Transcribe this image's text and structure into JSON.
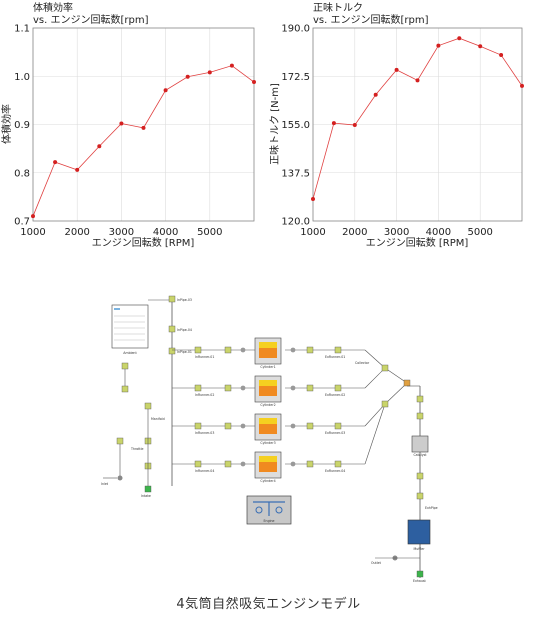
{
  "charts": [
    {
      "id": "vol_eff",
      "title": "体積効率",
      "subtitle": "vs. エンジン回転数[rpm]",
      "xlabel": "エンジン回転数 [RPM]",
      "ylabel": "体積効率",
      "xticks": [
        "1000",
        "2000",
        "3000",
        "4000",
        "5000"
      ],
      "yticks": [
        "0.7",
        "0.8",
        "0.9",
        "1.0",
        "1.1"
      ]
    },
    {
      "id": "torque",
      "title": "正味トルク",
      "subtitle": "vs. エンジン回転数[rpm]",
      "xlabel": "エンジン回転数 [RPM]",
      "ylabel": "正味トルク [N-m]",
      "xticks": [
        "1000",
        "2000",
        "3000",
        "4000",
        "5000"
      ],
      "yticks": [
        "120.0",
        "137.5",
        "155.0",
        "172.5",
        "190.0"
      ]
    }
  ],
  "chart_data": [
    {
      "type": "line",
      "title": "体積効率",
      "subtitle": "vs. エンジン回転数[rpm]",
      "xlabel": "エンジン回転数 [RPM]",
      "ylabel": "体積効率",
      "xlim": [
        1000,
        6000
      ],
      "ylim": [
        0.7,
        1.1
      ],
      "grid": true,
      "series": [
        {
          "color": "#e04040",
          "x": [
            1000,
            1500,
            2000,
            2500,
            3000,
            3500,
            4000,
            4500,
            5000,
            5500,
            6000
          ],
          "y": [
            0.71,
            0.822,
            0.806,
            0.855,
            0.902,
            0.893,
            0.971,
            0.999,
            1.008,
            1.022,
            0.988
          ]
        }
      ]
    },
    {
      "type": "line",
      "title": "正味トルク",
      "subtitle": "vs. エンジン回転数[rpm]",
      "xlabel": "エンジン回転数 [RPM]",
      "ylabel": "正味トルク [N-m]",
      "xlim": [
        1000,
        6000
      ],
      "ylim": [
        120,
        190
      ],
      "grid": true,
      "series": [
        {
          "color": "#e04040",
          "x": [
            1000,
            1500,
            2000,
            2500,
            3000,
            3500,
            4000,
            4500,
            5000,
            5500,
            6000
          ],
          "y": [
            128,
            155.5,
            154.8,
            165.8,
            174.8,
            171.0,
            183.6,
            186.3,
            183.4,
            180.2,
            169.0
          ]
        }
      ]
    }
  ],
  "diagram": {
    "labels": {
      "inpipe03": "InPipe-03",
      "inpipe04": "InPipe-04",
      "inpipe01": "InPipe-01",
      "ambient": "Ambient",
      "intake": "Intake",
      "exhaust": "Exhaust",
      "inlet": "Inlet",
      "outlet": "Outlet",
      "engine": "Engine",
      "cylinder1": "Cylinder1",
      "cylinder2": "Cylinder2",
      "cylinder3": "Cylinder3",
      "cylinder4": "Cylinder4",
      "collector": "Collector",
      "catalyst": "Catalyst",
      "muffler": "Muffler",
      "exrunner1": "ExRunner-01",
      "exrunner2": "ExRunner-02",
      "exrunner3": "ExRunner-03",
      "exrunner4": "ExRunner-04",
      "inrunner1": "InRunner-01",
      "inrunner2": "InRunner-02",
      "inrunner3": "InRunner-03",
      "inrunner4": "InRunner-04",
      "manifold": "Manifold",
      "throttle": "Throttle",
      "exhpipe": "ExhPipe"
    }
  },
  "caption": "4気筒自然吸気エンジンモデル"
}
